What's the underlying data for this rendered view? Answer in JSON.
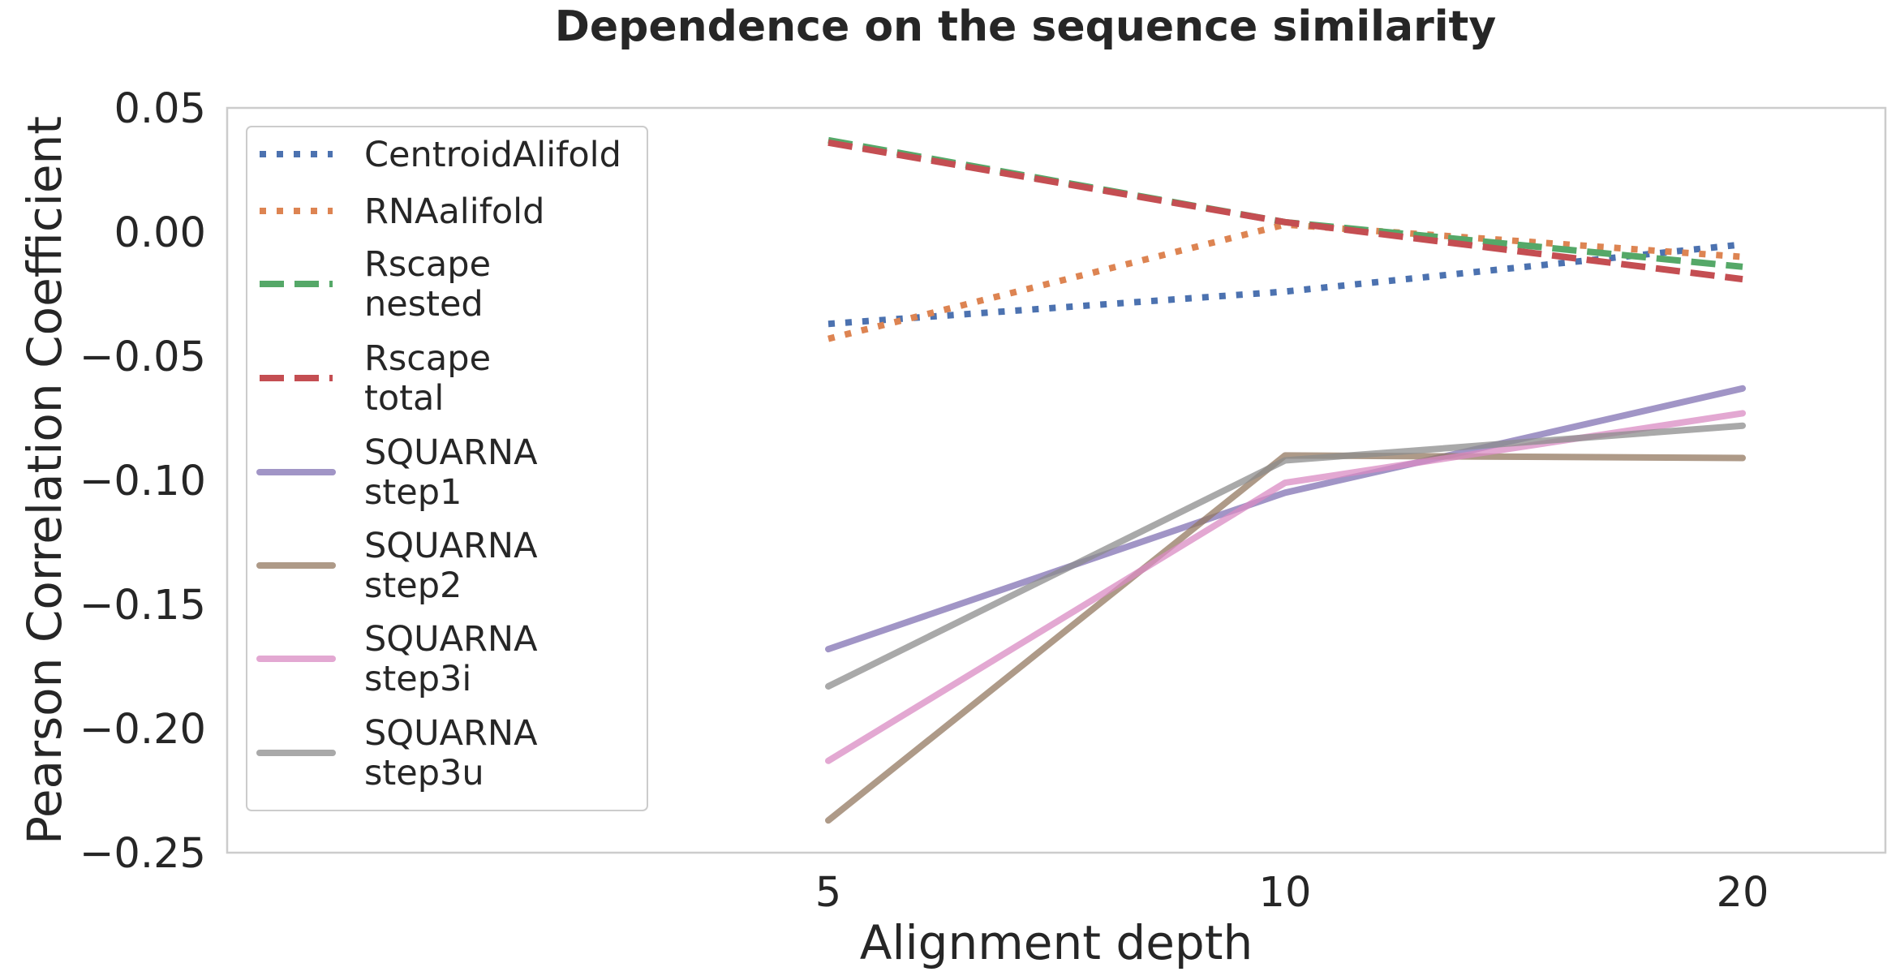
{
  "chart_data": {
    "type": "line",
    "title": "Dependence on the sequence similarity",
    "xlabel": "Alignment depth",
    "ylabel": "Pearson Correlation Coefficient",
    "categories": [
      "5",
      "10",
      "20"
    ],
    "ylim": [
      -0.25,
      0.05
    ],
    "yticks": [
      "0.05",
      "0.00",
      "−0.05",
      "−0.10",
      "−0.15",
      "−0.20",
      "−0.25"
    ],
    "grid": false,
    "legend": "upper-left",
    "series": [
      {
        "name": "CentroidAlifold",
        "label_lines": [
          "CentroidAlifold"
        ],
        "style": "dotted",
        "color": "#4c72b0",
        "values": [
          -0.037,
          -0.024,
          -0.005
        ]
      },
      {
        "name": "RNAalifold",
        "label_lines": [
          "RNAalifold"
        ],
        "style": "dotted",
        "color": "#dd8452",
        "values": [
          -0.043,
          0.003,
          -0.01
        ]
      },
      {
        "name": "Rscape nested",
        "label_lines": [
          "Rscape",
          "nested"
        ],
        "style": "dashed",
        "color": "#55a868",
        "values": [
          0.037,
          0.004,
          -0.014
        ]
      },
      {
        "name": "Rscape total",
        "label_lines": [
          "Rscape",
          "total"
        ],
        "style": "dashed",
        "color": "#c44e52",
        "values": [
          0.036,
          0.004,
          -0.019
        ]
      },
      {
        "name": "SQUARNA step1",
        "label_lines": [
          "SQUARNA",
          "step1"
        ],
        "style": "solid",
        "color": "#8172b3",
        "values": [
          -0.168,
          -0.105,
          -0.063
        ]
      },
      {
        "name": "SQUARNA step2",
        "label_lines": [
          "SQUARNA",
          "step2"
        ],
        "style": "solid",
        "color": "#937860",
        "values": [
          -0.237,
          -0.09,
          -0.091
        ]
      },
      {
        "name": "SQUARNA step3i",
        "label_lines": [
          "SQUARNA",
          "step3i"
        ],
        "style": "solid",
        "color": "#da8bc3",
        "values": [
          -0.213,
          -0.101,
          -0.073
        ]
      },
      {
        "name": "SQUARNA step3u",
        "label_lines": [
          "SQUARNA",
          "step3u"
        ],
        "style": "solid",
        "color": "#8c8c8c",
        "values": [
          -0.183,
          -0.092,
          -0.078
        ]
      }
    ]
  }
}
